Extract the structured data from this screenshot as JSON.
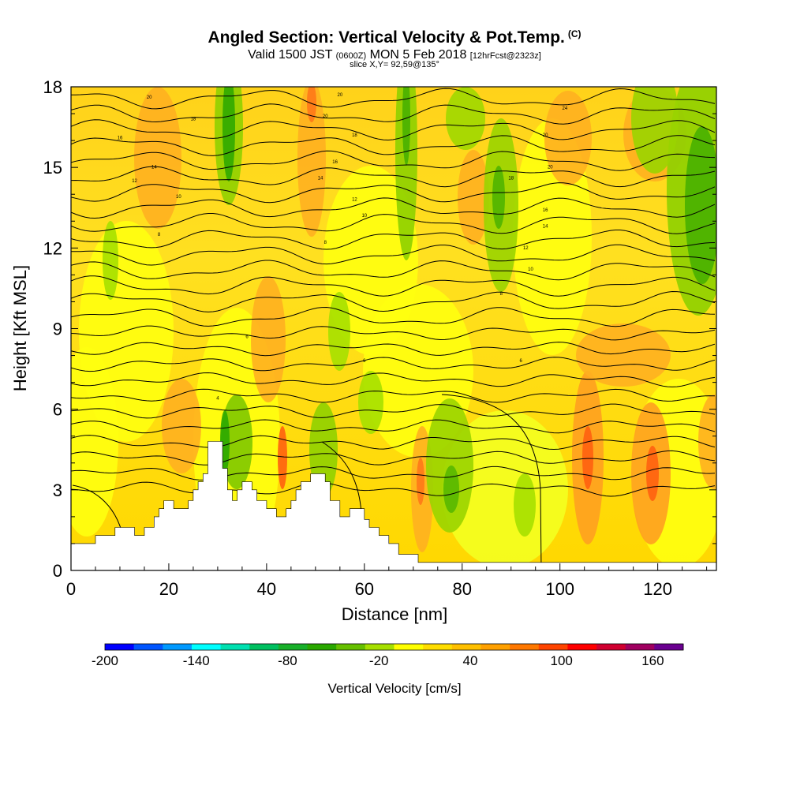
{
  "header": {
    "title": "Angled Section: Vertical Velocity & Pot.Temp.",
    "title_mark": "(C)",
    "subtitle_a": "Valid 1500 JST",
    "subtitle_b": "(0600Z)",
    "subtitle_c": "MON 5 Feb 2018",
    "subtitle_d": "[12hrFcst@2323z]",
    "slice": "slice X,Y= 92,59@135°"
  },
  "chart_data": {
    "type": "heatmap",
    "xlabel": "Distance [nm]",
    "ylabel": "Height [Kft MSL]",
    "xlim": [
      0,
      132
    ],
    "ylim": [
      0,
      18
    ],
    "x_ticks": [
      0,
      20,
      40,
      60,
      80,
      100,
      120
    ],
    "y_ticks": [
      0,
      3,
      6,
      9,
      12,
      15,
      18
    ],
    "colorbar": {
      "label": "Vertical Velocity [cm/s]",
      "range": [
        -200,
        180
      ],
      "step": 20,
      "tick_labels": [
        -200,
        -140,
        -80,
        -20,
        40,
        100,
        160
      ],
      "colors": [
        "#0000ff",
        "#0055ff",
        "#0099ff",
        "#00ffff",
        "#00e0b0",
        "#00c060",
        "#18b02a",
        "#2aa800",
        "#66c000",
        "#a6e000",
        "#ffff00",
        "#ffdd00",
        "#ffc000",
        "#ffa000",
        "#ff7800",
        "#ff4400",
        "#ff0000",
        "#d00030",
        "#a00060",
        "#6a0090"
      ]
    },
    "terrain_profile": [
      [
        0,
        1
      ],
      [
        5,
        1
      ],
      [
        5,
        1.3
      ],
      [
        9,
        1.3
      ],
      [
        9,
        1.6
      ],
      [
        13,
        1.6
      ],
      [
        13,
        1.3
      ],
      [
        15,
        1.3
      ],
      [
        15,
        1.6
      ],
      [
        17,
        1.6
      ],
      [
        17,
        2.0
      ],
      [
        18,
        2.0
      ],
      [
        18,
        2.3
      ],
      [
        19,
        2.3
      ],
      [
        19,
        2.6
      ],
      [
        21,
        2.6
      ],
      [
        21,
        2.3
      ],
      [
        24,
        2.3
      ],
      [
        24,
        2.6
      ],
      [
        25,
        2.6
      ],
      [
        25,
        3.0
      ],
      [
        26,
        3.0
      ],
      [
        26,
        3.3
      ],
      [
        27,
        3.3
      ],
      [
        27,
        3.6
      ],
      [
        28,
        3.6
      ],
      [
        28,
        4.8
      ],
      [
        31,
        4.8
      ],
      [
        31,
        3.8
      ],
      [
        32,
        3.8
      ],
      [
        32,
        3.0
      ],
      [
        33,
        3.0
      ],
      [
        33,
        2.6
      ],
      [
        34,
        2.6
      ],
      [
        34,
        3.0
      ],
      [
        35,
        3.0
      ],
      [
        35,
        3.3
      ],
      [
        37,
        3.3
      ],
      [
        37,
        3.0
      ],
      [
        38,
        3.0
      ],
      [
        38,
        2.6
      ],
      [
        40,
        2.6
      ],
      [
        40,
        2.3
      ],
      [
        42,
        2.3
      ],
      [
        42,
        2.0
      ],
      [
        44,
        2.0
      ],
      [
        44,
        2.3
      ],
      [
        45,
        2.3
      ],
      [
        45,
        2.6
      ],
      [
        46,
        2.6
      ],
      [
        46,
        3.0
      ],
      [
        47,
        3.0
      ],
      [
        47,
        3.3
      ],
      [
        49,
        3.3
      ],
      [
        49,
        3.6
      ],
      [
        52,
        3.6
      ],
      [
        52,
        3.3
      ],
      [
        53,
        3.3
      ],
      [
        53,
        2.6
      ],
      [
        55,
        2.6
      ],
      [
        55,
        2.0
      ],
      [
        57,
        2.0
      ],
      [
        57,
        2.3
      ],
      [
        60,
        2.3
      ],
      [
        60,
        1.9
      ],
      [
        61,
        1.9
      ],
      [
        61,
        1.6
      ],
      [
        63,
        1.6
      ],
      [
        63,
        1.3
      ],
      [
        65,
        1.3
      ],
      [
        65,
        1.0
      ],
      [
        67,
        1.0
      ],
      [
        67,
        0.6
      ],
      [
        71,
        0.6
      ],
      [
        71,
        0.3
      ],
      [
        132,
        0.3
      ]
    ],
    "theta_contour_labels": [
      {
        "text": "20",
        "x": 16,
        "y": 17.6
      },
      {
        "text": "18",
        "x": 25,
        "y": 16.8
      },
      {
        "text": "16",
        "x": 10,
        "y": 16.1
      },
      {
        "text": "14",
        "x": 17,
        "y": 15.0
      },
      {
        "text": "12",
        "x": 13,
        "y": 14.5
      },
      {
        "text": "10",
        "x": 22,
        "y": 13.9
      },
      {
        "text": "8",
        "x": 18,
        "y": 12.5
      },
      {
        "text": "20",
        "x": 55,
        "y": 17.7
      },
      {
        "text": "20",
        "x": 52,
        "y": 16.9
      },
      {
        "text": "18",
        "x": 58,
        "y": 16.2
      },
      {
        "text": "16",
        "x": 54,
        "y": 15.2
      },
      {
        "text": "14",
        "x": 51,
        "y": 14.6
      },
      {
        "text": "12",
        "x": 58,
        "y": 13.8
      },
      {
        "text": "10",
        "x": 60,
        "y": 13.2
      },
      {
        "text": "8",
        "x": 52,
        "y": 12.2
      },
      {
        "text": "6",
        "x": 36,
        "y": 8.7
      },
      {
        "text": "6",
        "x": 60,
        "y": 7.8
      },
      {
        "text": "6",
        "x": 92,
        "y": 7.8
      },
      {
        "text": "4",
        "x": 30,
        "y": 6.4
      },
      {
        "text": "24",
        "x": 101,
        "y": 17.2
      },
      {
        "text": "20",
        "x": 97,
        "y": 16.2
      },
      {
        "text": "20",
        "x": 98,
        "y": 15.0
      },
      {
        "text": "18",
        "x": 90,
        "y": 14.6
      },
      {
        "text": "16",
        "x": 97,
        "y": 13.4
      },
      {
        "text": "14",
        "x": 97,
        "y": 12.8
      },
      {
        "text": "12",
        "x": 93,
        "y": 12.0
      },
      {
        "text": "10",
        "x": 94,
        "y": 11.2
      },
      {
        "text": "8",
        "x": 88,
        "y": 10.3
      }
    ]
  }
}
